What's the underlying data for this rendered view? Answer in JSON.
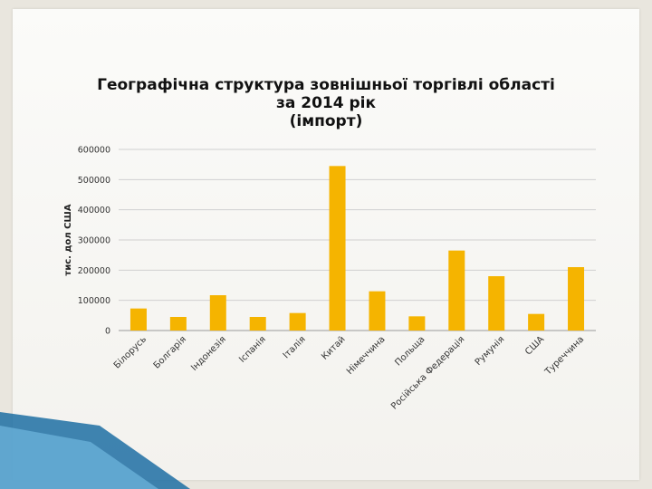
{
  "colors": {
    "bar": "#f5b400",
    "grid": "#d0d0d0",
    "axis": "#9a9a9a",
    "text": "#333333"
  },
  "title_lines": [
    "Географічна структура зовнішньої торгівлі області",
    "за 2014 рік",
    "(імпорт)"
  ],
  "chart_data": {
    "type": "bar",
    "title": "Географічна структура зовнішньої торгівлі області за 2014 рік (імпорт)",
    "ylabel": "тис. дол США",
    "xlabel": "",
    "categories": [
      "Білорусь",
      "Болгарія",
      "Індонезія",
      "Іспанія",
      "Італія",
      "Китай",
      "Німеччина",
      "Польща",
      "Російська Федерація",
      "Румунія",
      "США",
      "Туреччина"
    ],
    "values": [
      73000,
      45000,
      117000,
      45000,
      58000,
      545000,
      130000,
      47000,
      265000,
      180000,
      55000,
      210000
    ],
    "ylim": [
      0,
      600000
    ],
    "yticks": [
      "0",
      "100000",
      "200000",
      "300000",
      "400000",
      "500000",
      "600000"
    ],
    "grid": true,
    "legend": "none"
  }
}
